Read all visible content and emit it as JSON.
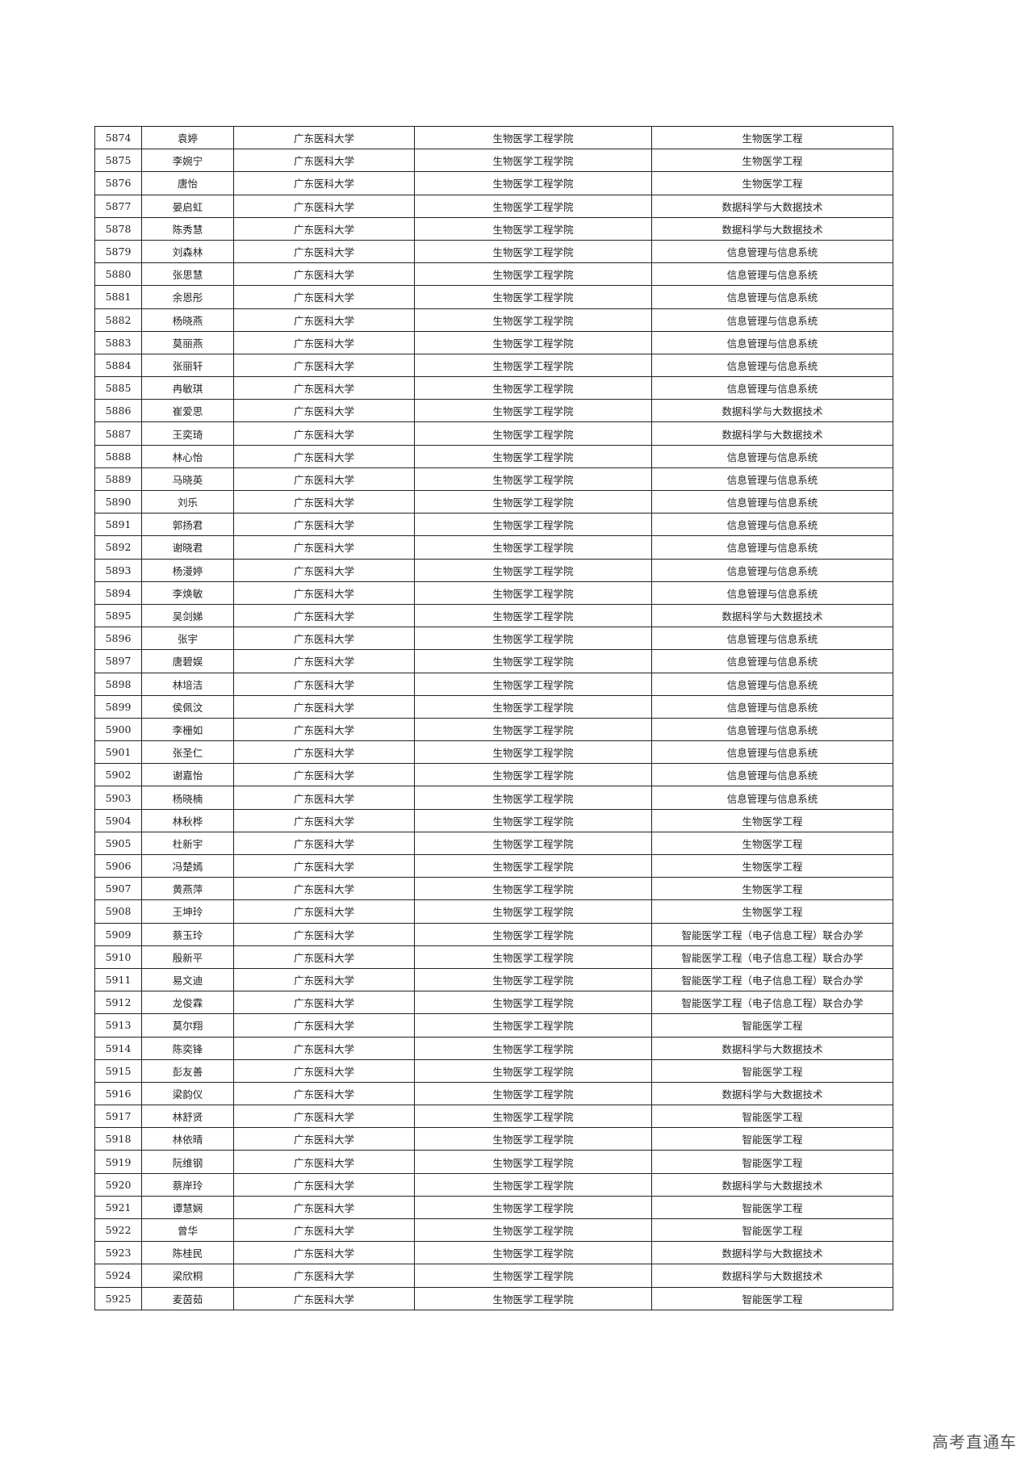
{
  "rows": [
    [
      "5874",
      "袁婷",
      "广东医科大学",
      "生物医学工程学院",
      "生物医学工程"
    ],
    [
      "5875",
      "李婉宁",
      "广东医科大学",
      "生物医学工程学院",
      "生物医学工程"
    ],
    [
      "5876",
      "唐怡",
      "广东医科大学",
      "生物医学工程学院",
      "生物医学工程"
    ],
    [
      "5877",
      "晏启虹",
      "广东医科大学",
      "生物医学工程学院",
      "数据科学与大数据技术"
    ],
    [
      "5878",
      "陈秀慧",
      "广东医科大学",
      "生物医学工程学院",
      "数据科学与大数据技术"
    ],
    [
      "5879",
      "刘森林",
      "广东医科大学",
      "生物医学工程学院",
      "信息管理与信息系统"
    ],
    [
      "5880",
      "张思慧",
      "广东医科大学",
      "生物医学工程学院",
      "信息管理与信息系统"
    ],
    [
      "5881",
      "余恩彤",
      "广东医科大学",
      "生物医学工程学院",
      "信息管理与信息系统"
    ],
    [
      "5882",
      "杨晓燕",
      "广东医科大学",
      "生物医学工程学院",
      "信息管理与信息系统"
    ],
    [
      "5883",
      "莫丽燕",
      "广东医科大学",
      "生物医学工程学院",
      "信息管理与信息系统"
    ],
    [
      "5884",
      "张丽轩",
      "广东医科大学",
      "生物医学工程学院",
      "信息管理与信息系统"
    ],
    [
      "5885",
      "冉敏琪",
      "广东医科大学",
      "生物医学工程学院",
      "信息管理与信息系统"
    ],
    [
      "5886",
      "崔爱思",
      "广东医科大学",
      "生物医学工程学院",
      "数据科学与大数据技术"
    ],
    [
      "5887",
      "王奕琦",
      "广东医科大学",
      "生物医学工程学院",
      "数据科学与大数据技术"
    ],
    [
      "5888",
      "林心怡",
      "广东医科大学",
      "生物医学工程学院",
      "信息管理与信息系统"
    ],
    [
      "5889",
      "马晓英",
      "广东医科大学",
      "生物医学工程学院",
      "信息管理与信息系统"
    ],
    [
      "5890",
      "刘乐",
      "广东医科大学",
      "生物医学工程学院",
      "信息管理与信息系统"
    ],
    [
      "5891",
      "郭扬君",
      "广东医科大学",
      "生物医学工程学院",
      "信息管理与信息系统"
    ],
    [
      "5892",
      "谢晓君",
      "广东医科大学",
      "生物医学工程学院",
      "信息管理与信息系统"
    ],
    [
      "5893",
      "杨漫婷",
      "广东医科大学",
      "生物医学工程学院",
      "信息管理与信息系统"
    ],
    [
      "5894",
      "李焕敏",
      "广东医科大学",
      "生物医学工程学院",
      "信息管理与信息系统"
    ],
    [
      "5895",
      "吴剑娣",
      "广东医科大学",
      "生物医学工程学院",
      "数据科学与大数据技术"
    ],
    [
      "5896",
      "张宇",
      "广东医科大学",
      "生物医学工程学院",
      "信息管理与信息系统"
    ],
    [
      "5897",
      "唐碧娱",
      "广东医科大学",
      "生物医学工程学院",
      "信息管理与信息系统"
    ],
    [
      "5898",
      "林培洁",
      "广东医科大学",
      "生物医学工程学院",
      "信息管理与信息系统"
    ],
    [
      "5899",
      "侯佩汶",
      "广东医科大学",
      "生物医学工程学院",
      "信息管理与信息系统"
    ],
    [
      "5900",
      "李栅如",
      "广东医科大学",
      "生物医学工程学院",
      "信息管理与信息系统"
    ],
    [
      "5901",
      "张圣仁",
      "广东医科大学",
      "生物医学工程学院",
      "信息管理与信息系统"
    ],
    [
      "5902",
      "谢嘉怡",
      "广东医科大学",
      "生物医学工程学院",
      "信息管理与信息系统"
    ],
    [
      "5903",
      "杨晓楠",
      "广东医科大学",
      "生物医学工程学院",
      "信息管理与信息系统"
    ],
    [
      "5904",
      "林秋桦",
      "广东医科大学",
      "生物医学工程学院",
      "生物医学工程"
    ],
    [
      "5905",
      "杜新宇",
      "广东医科大学",
      "生物医学工程学院",
      "生物医学工程"
    ],
    [
      "5906",
      "冯楚嫣",
      "广东医科大学",
      "生物医学工程学院",
      "生物医学工程"
    ],
    [
      "5907",
      "黄燕萍",
      "广东医科大学",
      "生物医学工程学院",
      "生物医学工程"
    ],
    [
      "5908",
      "王坤玲",
      "广东医科大学",
      "生物医学工程学院",
      "生物医学工程"
    ],
    [
      "5909",
      "蔡玉玲",
      "广东医科大学",
      "生物医学工程学院",
      "智能医学工程（电子信息工程）联合办学"
    ],
    [
      "5910",
      "殷新平",
      "广东医科大学",
      "生物医学工程学院",
      "智能医学工程（电子信息工程）联合办学"
    ],
    [
      "5911",
      "易文迪",
      "广东医科大学",
      "生物医学工程学院",
      "智能医学工程（电子信息工程）联合办学"
    ],
    [
      "5912",
      "龙俊霖",
      "广东医科大学",
      "生物医学工程学院",
      "智能医学工程（电子信息工程）联合办学"
    ],
    [
      "5913",
      "莫尔翔",
      "广东医科大学",
      "生物医学工程学院",
      "智能医学工程"
    ],
    [
      "5914",
      "陈奕锋",
      "广东医科大学",
      "生物医学工程学院",
      "数据科学与大数据技术"
    ],
    [
      "5915",
      "彭友善",
      "广东医科大学",
      "生物医学工程学院",
      "智能医学工程"
    ],
    [
      "5916",
      "梁韵仪",
      "广东医科大学",
      "生物医学工程学院",
      "数据科学与大数据技术"
    ],
    [
      "5917",
      "林舒贤",
      "广东医科大学",
      "生物医学工程学院",
      "智能医学工程"
    ],
    [
      "5918",
      "林依晴",
      "广东医科大学",
      "生物医学工程学院",
      "智能医学工程"
    ],
    [
      "5919",
      "阮维钢",
      "广东医科大学",
      "生物医学工程学院",
      "智能医学工程"
    ],
    [
      "5920",
      "蔡岸玲",
      "广东医科大学",
      "生物医学工程学院",
      "数据科学与大数据技术"
    ],
    [
      "5921",
      "谭慧娴",
      "广东医科大学",
      "生物医学工程学院",
      "智能医学工程"
    ],
    [
      "5922",
      "曾华",
      "广东医科大学",
      "生物医学工程学院",
      "智能医学工程"
    ],
    [
      "5923",
      "陈桂民",
      "广东医科大学",
      "生物医学工程学院",
      "数据科学与大数据技术"
    ],
    [
      "5924",
      "梁欣桐",
      "广东医科大学",
      "生物医学工程学院",
      "数据科学与大数据技术"
    ],
    [
      "5925",
      "麦茵茹",
      "广东医科大学",
      "生物医学工程学院",
      "智能医学工程"
    ]
  ],
  "watermark": "高考直通车"
}
